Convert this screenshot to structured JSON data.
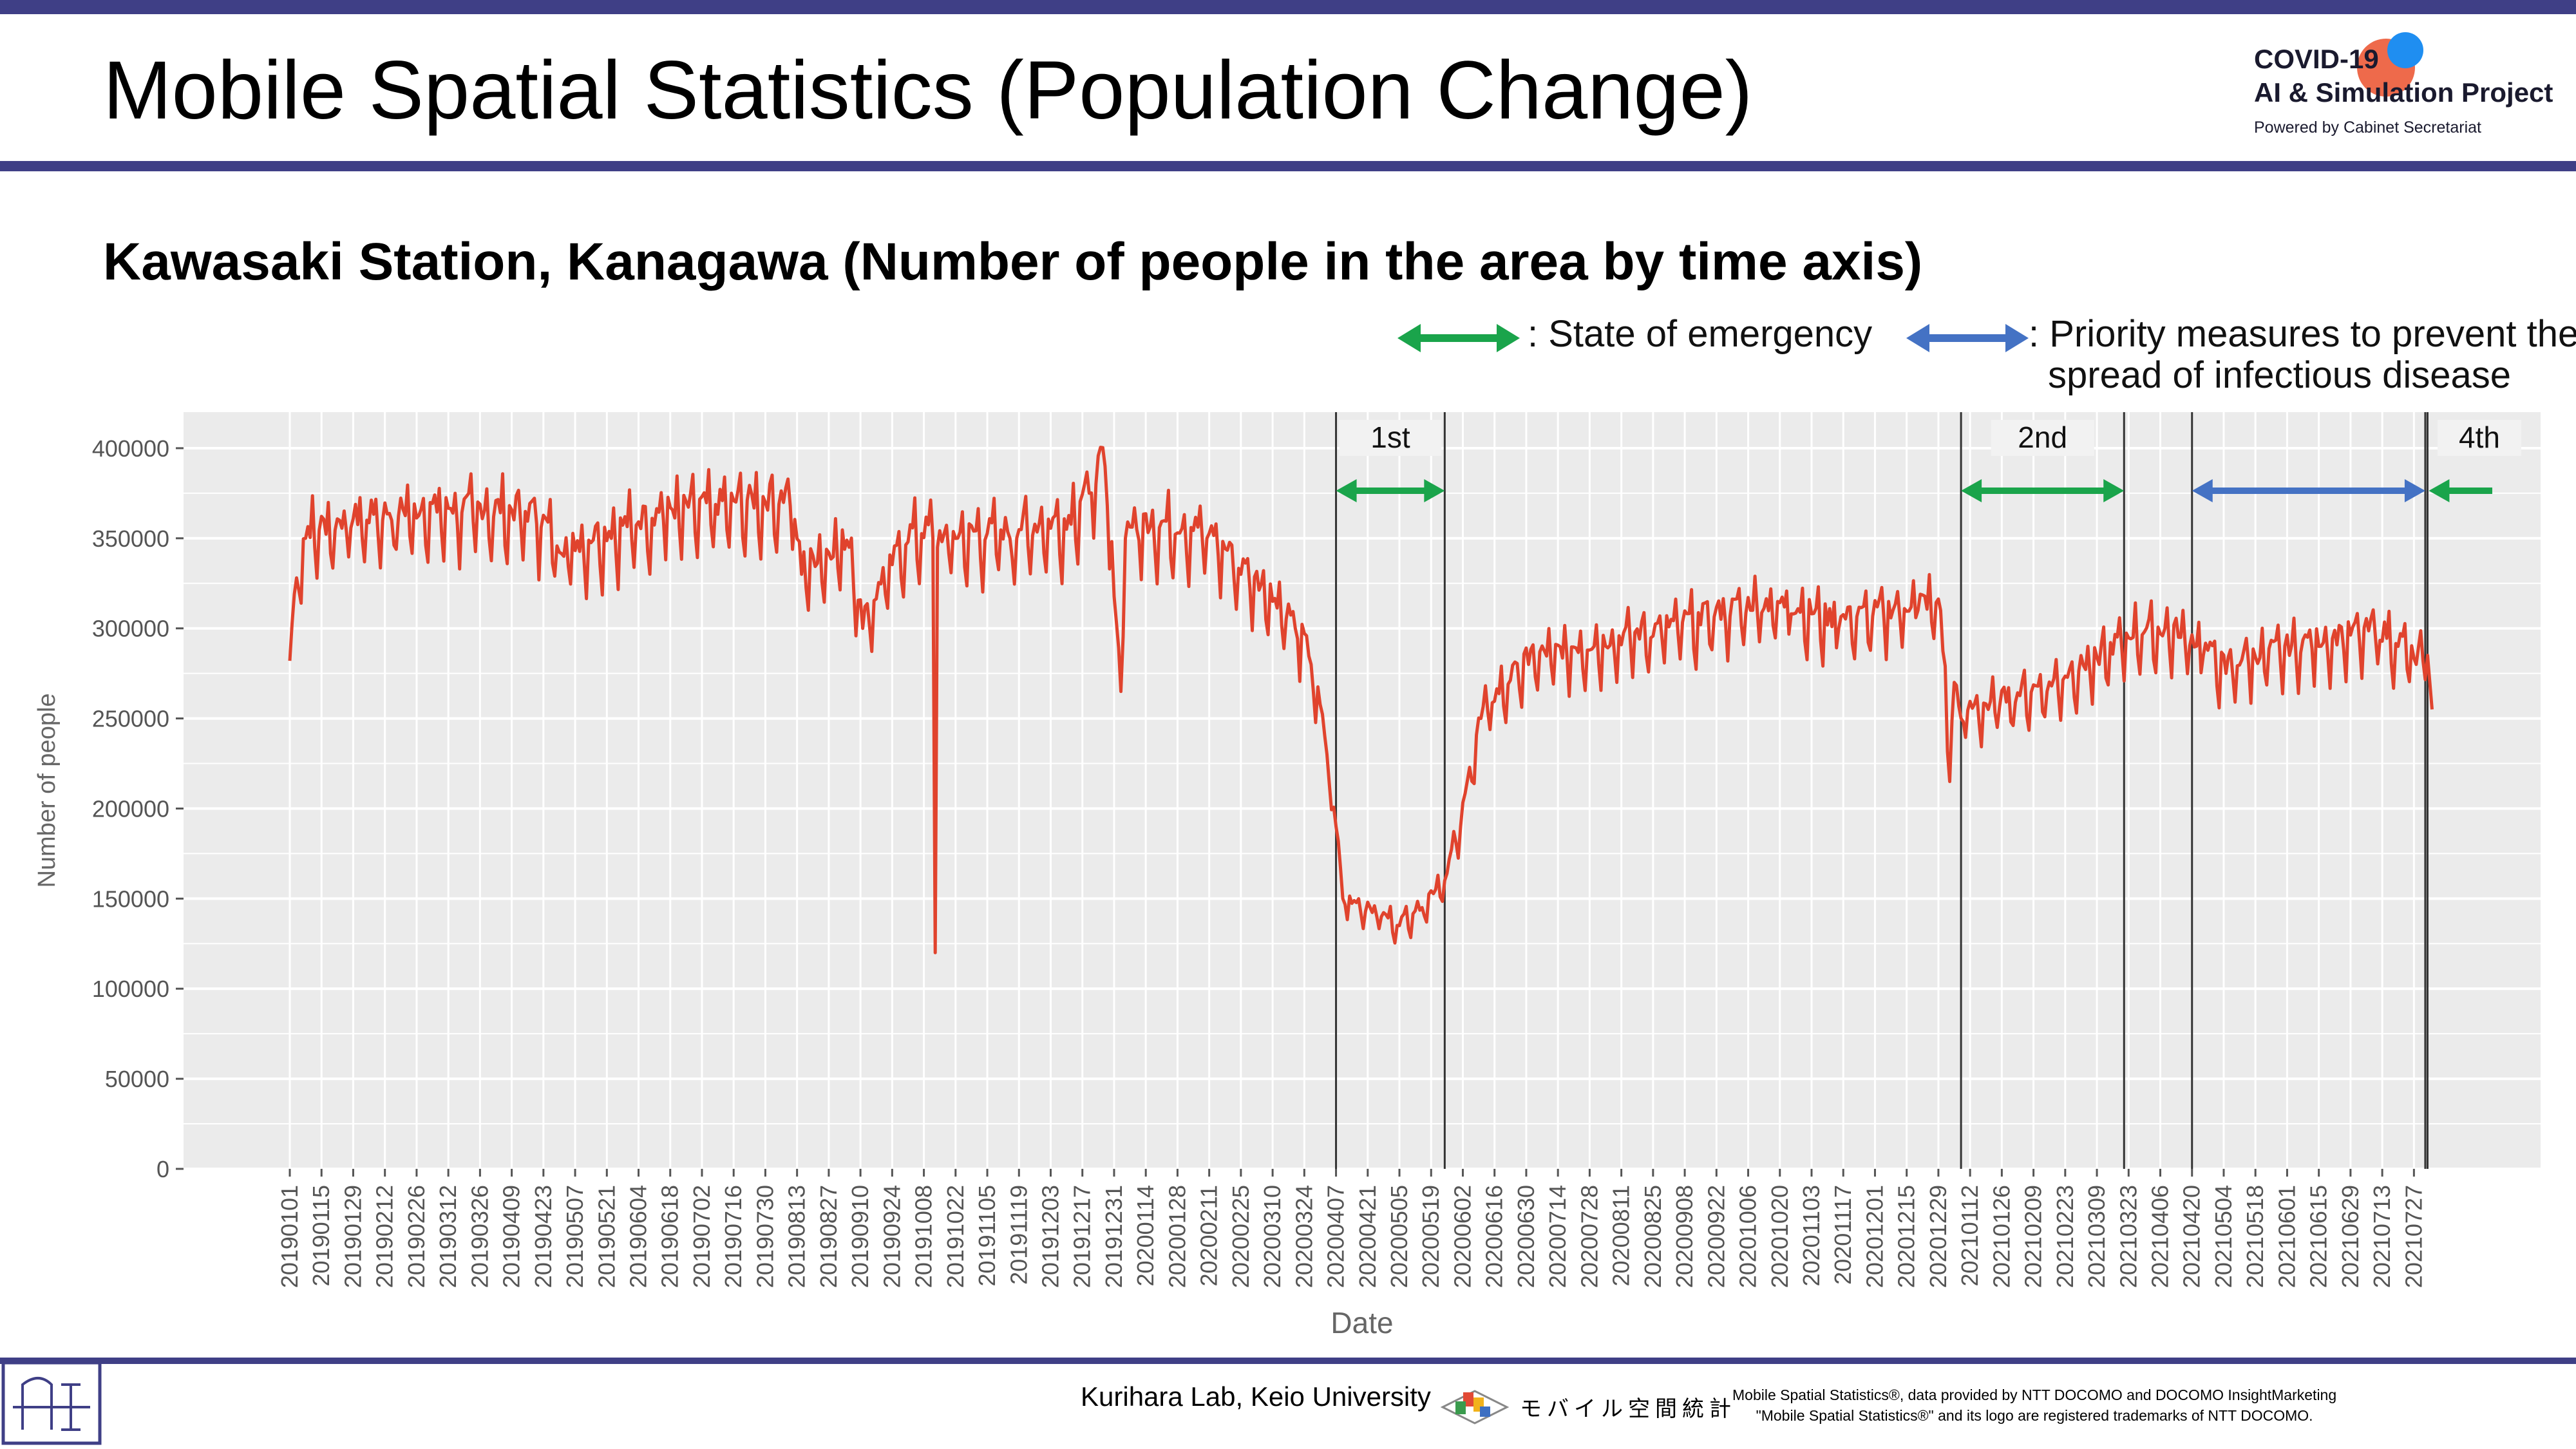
{
  "header": {
    "title": "Mobile Spatial Statistics (Population Change)",
    "logo_line1": "COVID-19",
    "logo_line2": "AI & Simulation Project",
    "logo_line3": "Powered by Cabinet Secretariat"
  },
  "subtitle": "Kawasaki Station, Kanagawa (Number of people in the area by time axis)",
  "legend": {
    "emergency": ": State of emergency",
    "priority_line1": ": Priority measures to prevent the",
    "priority_line2": "spread of infectious disease",
    "emergency_color": "#1aa44b",
    "priority_color": "#4472c4"
  },
  "chart_data": {
    "type": "line",
    "xlabel": "Date",
    "ylabel": "Number of people",
    "ylim": [
      0,
      420000
    ],
    "yticks": [
      0,
      50000,
      100000,
      150000,
      200000,
      250000,
      300000,
      350000,
      400000
    ],
    "grid": true,
    "line_color": "#e0432d",
    "xlim_dates": [
      "2019-01-01",
      "2021-08-05"
    ],
    "xtick_labels": [
      "20190101",
      "20190115",
      "20190129",
      "20190212",
      "20190226",
      "20190312",
      "20190326",
      "20190409",
      "20190423",
      "20190507",
      "20190521",
      "20190604",
      "20190618",
      "20190702",
      "20190716",
      "20190730",
      "20190813",
      "20190827",
      "20190910",
      "20190924",
      "20191008",
      "20191022",
      "20191105",
      "20191119",
      "20191203",
      "20191217",
      "20191231",
      "20200114",
      "20200128",
      "20200211",
      "20200225",
      "20200310",
      "20200324",
      "20200407",
      "20200421",
      "20200505",
      "20200519",
      "20200602",
      "20200616",
      "20200630",
      "20200714",
      "20200728",
      "20200811",
      "20200825",
      "20200908",
      "20200922",
      "20201006",
      "20201020",
      "20201103",
      "20201117",
      "20201201",
      "20201215",
      "20201229",
      "20210112",
      "20210126",
      "20210209",
      "20210223",
      "20210309",
      "20210323",
      "20210406",
      "20210420",
      "20210504",
      "20210518",
      "20210601",
      "20210615",
      "20210629",
      "20210713",
      "20210727"
    ],
    "series": [
      {
        "x": [
          "2019-01-01",
          "2019-01-04",
          "2019-01-08",
          "2019-02-15",
          "2019-04-01",
          "2019-04-20",
          "2019-05-02",
          "2019-06-15",
          "2019-08-10",
          "2019-08-15",
          "2019-09-05",
          "2019-09-11",
          "2019-10-01",
          "2019-10-12",
          "2019-10-13",
          "2019-10-14",
          "2019-11-15",
          "2019-12-10",
          "2019-12-20",
          "2019-12-27",
          "2020-01-03",
          "2020-01-05",
          "2020-01-10",
          "2020-02-10",
          "2020-02-25",
          "2020-03-10",
          "2020-03-20",
          "2020-03-27",
          "2020-04-03",
          "2020-04-07",
          "2020-04-10",
          "2020-04-25",
          "2020-05-05",
          "2020-05-15",
          "2020-05-25",
          "2020-06-01",
          "2020-06-10",
          "2020-07-01",
          "2020-08-15",
          "2020-09-15",
          "2020-10-10",
          "2020-10-25",
          "2020-11-15",
          "2020-12-20",
          "2020-12-30",
          "2021-01-03",
          "2021-01-05",
          "2021-01-08",
          "2021-01-20",
          "2021-02-15",
          "2021-03-10",
          "2021-03-25",
          "2021-04-15",
          "2021-04-25",
          "2021-05-05",
          "2021-05-15",
          "2021-06-15",
          "2021-07-10",
          "2021-07-20",
          "2021-07-28",
          "2021-08-02",
          "2021-08-04"
        ],
        "y": [
          282000,
          328000,
          350000,
          360000,
          362000,
          358000,
          340000,
          360000,
          368000,
          330000,
          345000,
          300000,
          348000,
          350000,
          120000,
          345000,
          350000,
          355000,
          375000,
          390000,
          265000,
          350000,
          355000,
          350000,
          330000,
          315000,
          300000,
          280000,
          230000,
          190000,
          150000,
          140000,
          135000,
          145000,
          160000,
          190000,
          250000,
          280000,
          292000,
          302000,
          310000,
          308000,
          300000,
          310000,
          310000,
          215000,
          270000,
          250000,
          255000,
          265000,
          280000,
          295000,
          295000,
          285000,
          275000,
          280000,
          290000,
          295000,
          290000,
          280000,
          285000,
          255000
        ]
      }
    ],
    "annotations": [
      {
        "label": "1st",
        "start": "2020-04-07",
        "end": "2020-05-25",
        "kind": "emergency"
      },
      {
        "label": "2nd",
        "start": "2021-01-08",
        "end": "2021-03-21",
        "kind": "emergency"
      },
      {
        "kind": "priority",
        "start": "2021-04-20",
        "end": "2021-08-01"
      },
      {
        "label": "4th",
        "start": "2021-08-02",
        "end": "2021-08-05",
        "kind": "emergency"
      }
    ]
  },
  "footer": {
    "lab": "Kurihara Lab, Keio University",
    "mss_logo_text": "モバイル空間統計",
    "credit_line1": "Mobile Spatial Statistics®, data provided by NTT DOCOMO and DOCOMO InsightMarketing",
    "credit_line2": "\"Mobile Spatial Statistics®\" and its logo are registered trademarks of NTT DOCOMO."
  }
}
